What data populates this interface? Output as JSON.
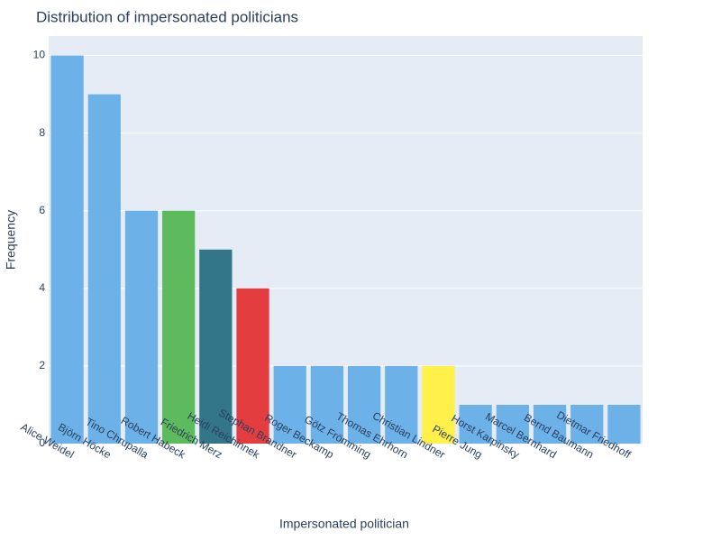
{
  "chart_data": {
    "type": "bar",
    "title": "Distribution of impersonated politicians",
    "xlabel": "Impersonated politician",
    "ylabel": "Frequency",
    "ylim": [
      0,
      10.5
    ],
    "yticks": [
      0,
      2,
      4,
      6,
      8,
      10
    ],
    "grid": true,
    "categories": [
      "Alice Weidel",
      "Björn Höcke",
      "Tino Chrupalla",
      "Robert Habeck",
      "Friedrich Merz",
      "Heidi Reichinnek",
      "Stephan Brandner",
      "Roger Beckamp",
      "Götz Frömming",
      "Thomas Ehrhorn",
      "Christian Lindner",
      "Pierre Jung",
      "Horst Karpinsky",
      "Marcel Bernhard",
      "Bernd Baumann",
      "Dietmar Friedhoff"
    ],
    "values": [
      10,
      9,
      6,
      6,
      5,
      4,
      2,
      2,
      2,
      2,
      2,
      1,
      1,
      1,
      1,
      1
    ],
    "colors": [
      "#6cb2e8",
      "#6cb2e8",
      "#6cb2e8",
      "#5dbb5d",
      "#337589",
      "#e43d40",
      "#6cb2e8",
      "#6cb2e8",
      "#6cb2e8",
      "#6cb2e8",
      "#fff04a",
      "#6cb2e8",
      "#6cb2e8",
      "#6cb2e8",
      "#6cb2e8",
      "#6cb2e8"
    ],
    "plot_background": "#e5ecf6",
    "text_color": "#2a3f5f"
  }
}
